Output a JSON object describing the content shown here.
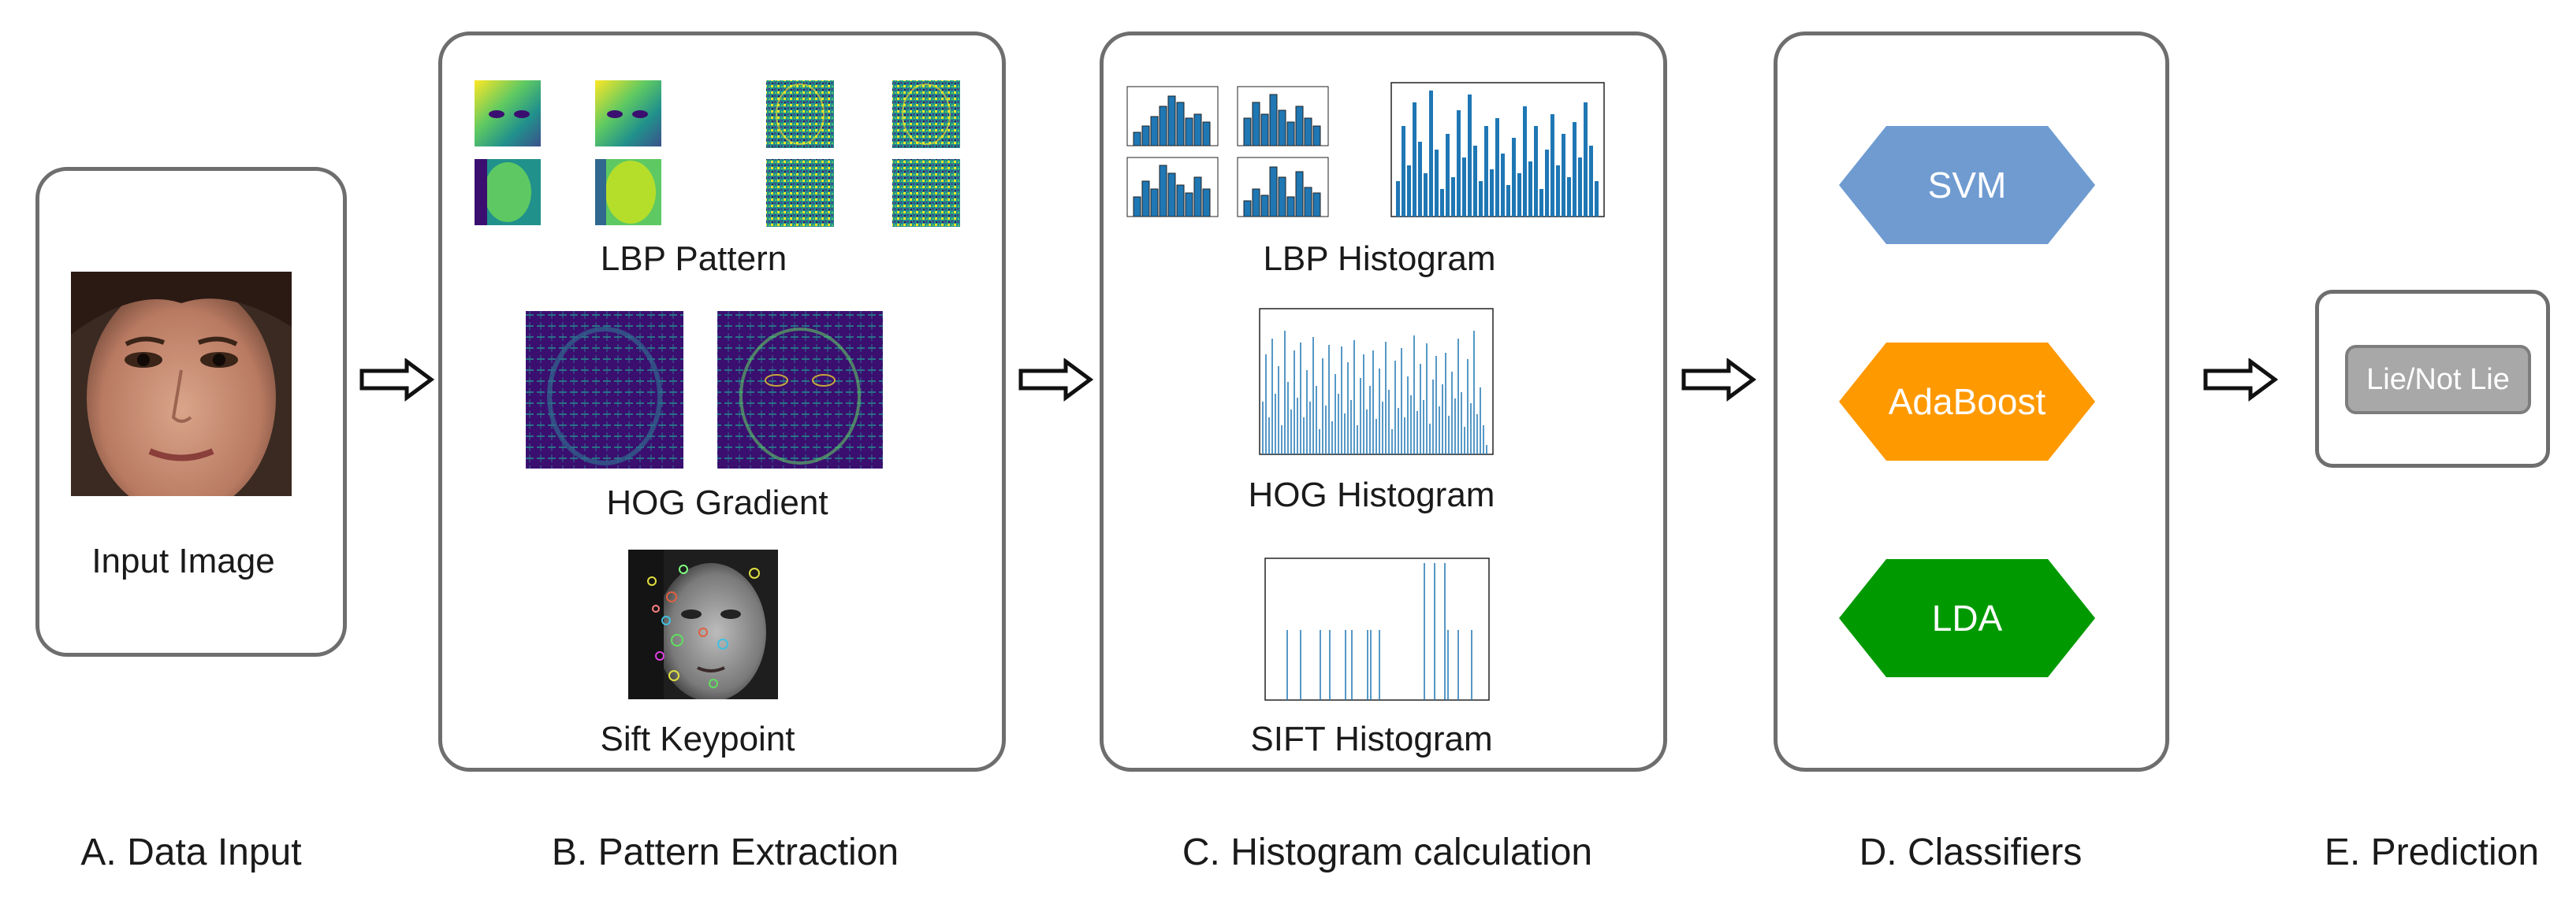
{
  "panels": {
    "input": {
      "label": "Input Image"
    },
    "pattern": {
      "lbp_label": "LBP Pattern",
      "hog_label": "HOG Gradient",
      "sift_label": "Sift Keypoint"
    },
    "histogram": {
      "lbp_label": "LBP Histogram",
      "hog_label": "HOG Histogram",
      "sift_label": "SIFT Histogram"
    },
    "classifiers": {
      "items": [
        {
          "name": "SVM",
          "color": "#6f9bd1"
        },
        {
          "name": "AdaBoost",
          "color": "#ff9900"
        },
        {
          "name": "LDA",
          "color": "#009a00"
        }
      ]
    },
    "prediction": {
      "output": "Lie/Not Lie"
    }
  },
  "stages": [
    "A. Data Input",
    "B. Pattern Extraction",
    "C. Histogram calculation",
    "D. Classifiers",
    "E. Prediction"
  ],
  "colors": {
    "border": "#6e6e6e",
    "bar": "#1f77b4",
    "viridis_dark": "#3b0f70"
  }
}
